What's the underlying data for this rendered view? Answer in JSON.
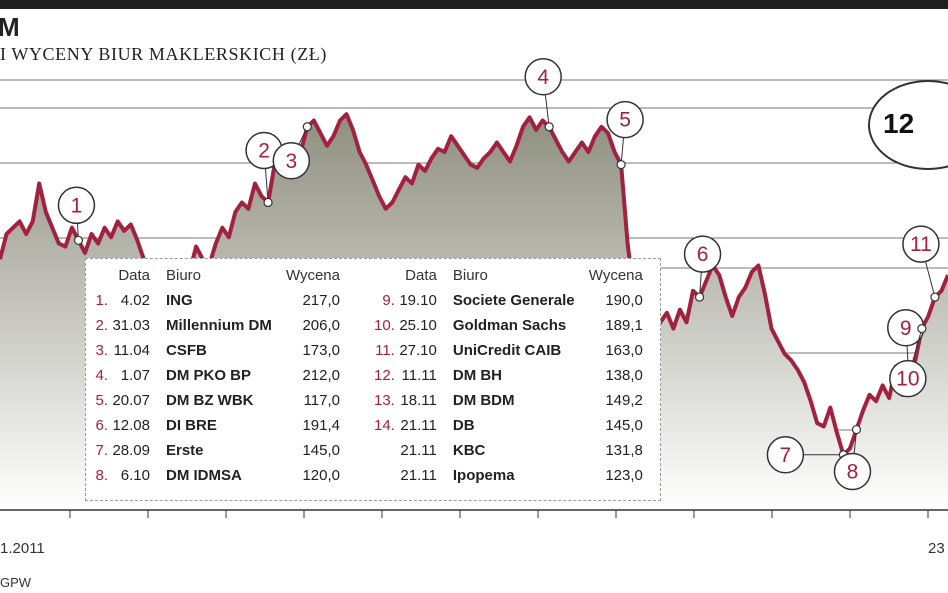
{
  "header": {
    "title": "M",
    "subtitle": "I WYCENY BIUR MAKLERSKICH (ZŁ)",
    "badge_value": "12"
  },
  "axis": {
    "x_start_label": "1.2011",
    "x_end_label": "23",
    "source": "GPW"
  },
  "table": {
    "columns": [
      "Data",
      "Biuro",
      "Wycena"
    ],
    "left": [
      {
        "no": "1.",
        "date": "4.02",
        "office": "ING",
        "value": "217,0"
      },
      {
        "no": "2.",
        "date": "31.03",
        "office": "Millennium DM",
        "value": "206,0"
      },
      {
        "no": "3.",
        "date": "11.04",
        "office": "CSFB",
        "value": "173,0"
      },
      {
        "no": "4.",
        "date": "1.07",
        "office": "DM PKO BP",
        "value": "212,0"
      },
      {
        "no": "5.",
        "date": "20.07",
        "office": "DM BZ WBK",
        "value": "117,0"
      },
      {
        "no": "6.",
        "date": "12.08",
        "office": "DI BRE",
        "value": "191,4"
      },
      {
        "no": "7.",
        "date": "28.09",
        "office": "Erste",
        "value": "145,0"
      },
      {
        "no": "8.",
        "date": "6.10",
        "office": "DM IDMSA",
        "value": "120,0"
      }
    ],
    "right": [
      {
        "no": "9.",
        "date": "19.10",
        "office": "Societe Generale",
        "value": "190,0"
      },
      {
        "no": "10.",
        "date": "25.10",
        "office": "Goldman Sachs",
        "value": "189,1"
      },
      {
        "no": "11.",
        "date": "27.10",
        "office": "UniCredit CAIB",
        "value": "163,0"
      },
      {
        "no": "12.",
        "date": "11.11",
        "office": "DM BH",
        "value": "138,0"
      },
      {
        "no": "13.",
        "date": "18.11",
        "office": "DM BDM",
        "value": "149,2"
      },
      {
        "no": "14.",
        "date": "21.11",
        "office": "DB",
        "value": "145,0"
      },
      {
        "no": "",
        "date": "21.11",
        "office": "KBC",
        "value": "131,8"
      },
      {
        "no": "",
        "date": "21.11",
        "office": "Ipopema",
        "value": "123,0"
      }
    ]
  },
  "colors": {
    "line": "#a2213f",
    "fill_top": "#8e8e80",
    "fill_bottom": "#ffffff",
    "grid": "#777777"
  },
  "chart_data": {
    "type": "area",
    "title": "",
    "xlabel": "",
    "ylabel": "",
    "x_labels": [
      "1.2011",
      "23"
    ],
    "series": [
      {
        "values": [
          180,
          188,
          190,
          192,
          188,
          192,
          204,
          195,
          190,
          185,
          184,
          190,
          186,
          182,
          188,
          185,
          190,
          187,
          192,
          189,
          191,
          186,
          180,
          178,
          176,
          172,
          178,
          174,
          172,
          176,
          184,
          180,
          178,
          185,
          190,
          187,
          195,
          198,
          196,
          204,
          200,
          198,
          210,
          208,
          213,
          216,
          214,
          222,
          224,
          220,
          216,
          219,
          224,
          226,
          221,
          214,
          210,
          205,
          200,
          196,
          198,
          202,
          206,
          204,
          210,
          208,
          212,
          215,
          214,
          219,
          216,
          213,
          210,
          209,
          212,
          214,
          217,
          214,
          211,
          216,
          222,
          225,
          221,
          224,
          222,
          218,
          214,
          211,
          214,
          217,
          214,
          219,
          222,
          220,
          214,
          210,
          185,
          168,
          170,
          165,
          168,
          160,
          163,
          158,
          164,
          160,
          170,
          168,
          173,
          178,
          175,
          168,
          162,
          168,
          171,
          176,
          178,
          169,
          158,
          154,
          150,
          148,
          145,
          141,
          135,
          128,
          127,
          133,
          125,
          118,
          120,
          126,
          132,
          137,
          135,
          140,
          136,
          146,
          137,
          144,
          148,
          158,
          162,
          168,
          170,
          175
        ]
      }
    ],
    "annotations": [
      {
        "label": "1",
        "index": 12
      },
      {
        "label": "2",
        "index": 41
      },
      {
        "label": "3",
        "index": 47
      },
      {
        "label": "4",
        "index": 84
      },
      {
        "label": "5",
        "index": 95
      },
      {
        "label": "6",
        "index": 107
      },
      {
        "label": "7",
        "index": 129
      },
      {
        "label": "8",
        "index": 131
      },
      {
        "label": "9",
        "index": 139
      },
      {
        "label": "10",
        "index": 141
      },
      {
        "label": "11",
        "index": 143
      }
    ]
  }
}
